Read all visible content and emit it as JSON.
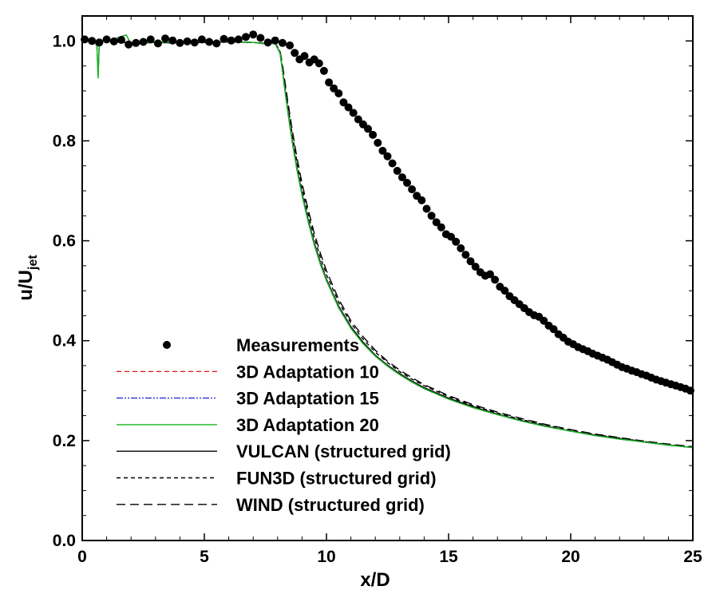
{
  "chart_data": {
    "type": "line",
    "xlabel": "x/D",
    "ylabel_main": "u/U",
    "ylabel_sub": "jet",
    "xlim": [
      0,
      25
    ],
    "ylim": [
      0,
      1.05
    ],
    "x_ticks": [
      0,
      5,
      10,
      15,
      20,
      25
    ],
    "x_tick_labels": [
      "0",
      "5",
      "10",
      "15",
      "20",
      "25"
    ],
    "y_ticks": [
      0,
      0.2,
      0.4,
      0.6,
      0.8,
      1.0
    ],
    "y_tick_labels": [
      "0.0",
      "0.2",
      "0.4",
      "0.6",
      "0.8",
      "1.0"
    ],
    "grid": false,
    "legend_position": "bottom-left",
    "measurements": {
      "name": "Measurements",
      "color": "#000000",
      "x": [
        0.1,
        0.4,
        0.7,
        1.0,
        1.3,
        1.6,
        1.9,
        2.2,
        2.5,
        2.8,
        3.1,
        3.4,
        3.7,
        4.0,
        4.3,
        4.6,
        4.9,
        5.2,
        5.5,
        5.8,
        6.1,
        6.4,
        6.7,
        7.0,
        7.3,
        7.6,
        7.9,
        8.2,
        8.5,
        8.7,
        8.9,
        9.1,
        9.3,
        9.5,
        9.7,
        9.9,
        10.1,
        10.3,
        10.5,
        10.7,
        10.9,
        11.1,
        11.3,
        11.5,
        11.7,
        11.9,
        12.1,
        12.3,
        12.5,
        12.7,
        12.9,
        13.1,
        13.3,
        13.5,
        13.7,
        13.9,
        14.1,
        14.3,
        14.5,
        14.7,
        14.9,
        15.1,
        15.3,
        15.5,
        15.7,
        15.9,
        16.1,
        16.3,
        16.5,
        16.7,
        16.9,
        17.1,
        17.3,
        17.5,
        17.7,
        17.9,
        18.1,
        18.3,
        18.5,
        18.7,
        18.9,
        19.1,
        19.3,
        19.5,
        19.7,
        19.9,
        20.1,
        20.3,
        20.5,
        20.7,
        20.9,
        21.1,
        21.3,
        21.5,
        21.7,
        21.9,
        22.1,
        22.3,
        22.5,
        22.7,
        22.9,
        23.1,
        23.3,
        23.5,
        23.7,
        23.9,
        24.1,
        24.3,
        24.5,
        24.7,
        24.9
      ],
      "y": [
        1.003,
        1.0,
        0.997,
        1.003,
        0.999,
        1.002,
        0.993,
        0.996,
        0.998,
        1.003,
        0.995,
        1.005,
        1.001,
        0.996,
        0.999,
        0.997,
        1.003,
        0.998,
        0.995,
        1.004,
        1.001,
        1.003,
        1.008,
        1.013,
        1.006,
        0.997,
        1.001,
        0.996,
        0.991,
        0.976,
        0.963,
        0.97,
        0.957,
        0.963,
        0.955,
        0.94,
        0.917,
        0.905,
        0.895,
        0.877,
        0.867,
        0.856,
        0.843,
        0.833,
        0.824,
        0.812,
        0.796,
        0.78,
        0.769,
        0.755,
        0.74,
        0.727,
        0.716,
        0.703,
        0.69,
        0.681,
        0.664,
        0.65,
        0.637,
        0.627,
        0.613,
        0.608,
        0.598,
        0.585,
        0.572,
        0.559,
        0.548,
        0.537,
        0.53,
        0.533,
        0.522,
        0.508,
        0.5,
        0.489,
        0.481,
        0.473,
        0.465,
        0.457,
        0.451,
        0.448,
        0.44,
        0.43,
        0.423,
        0.413,
        0.406,
        0.398,
        0.393,
        0.387,
        0.383,
        0.379,
        0.374,
        0.37,
        0.366,
        0.362,
        0.357,
        0.352,
        0.347,
        0.344,
        0.34,
        0.337,
        0.333,
        0.33,
        0.326,
        0.322,
        0.319,
        0.316,
        0.313,
        0.31,
        0.307,
        0.304,
        0.3
      ]
    },
    "series": [
      {
        "name": "3D Adaptation 10",
        "color": "#e32020",
        "x": [
          0,
          0.5,
          0.6,
          0.65,
          0.7,
          0.8,
          1.0,
          1.8,
          1.9,
          2.0,
          2.5,
          3.0,
          4.0,
          5.0,
          6.0,
          7.0,
          7.5,
          7.9,
          8.1,
          8.2,
          8.3,
          8.4,
          8.5,
          8.6,
          8.8,
          9.0,
          9.25,
          9.5,
          9.75,
          10,
          10.5,
          11,
          11.5,
          12,
          12.5,
          13,
          13.5,
          14,
          15,
          16,
          17,
          18,
          19,
          20,
          21,
          22,
          23,
          24,
          25
        ],
        "y": [
          1.0,
          0.998,
          0.99,
          0.93,
          0.995,
          1.0,
          0.999,
          1.012,
          1.003,
          0.993,
          0.995,
          0.998,
          0.997,
          0.998,
          0.999,
          0.997,
          0.994,
          0.995,
          0.975,
          0.94,
          0.9,
          0.865,
          0.83,
          0.797,
          0.74,
          0.691,
          0.638,
          0.592,
          0.553,
          0.52,
          0.466,
          0.425,
          0.394,
          0.369,
          0.349,
          0.332,
          0.317,
          0.304,
          0.283,
          0.266,
          0.252,
          0.239,
          0.228,
          0.219,
          0.21,
          0.203,
          0.197,
          0.191,
          0.186
        ]
      },
      {
        "name": "3D Adaptation 15",
        "color": "#2b2bd6",
        "x": [
          0,
          0.5,
          0.6,
          0.65,
          0.7,
          0.8,
          1.0,
          1.8,
          1.9,
          2.0,
          2.5,
          3.0,
          4.0,
          5.0,
          6.0,
          7.0,
          7.5,
          7.9,
          8.1,
          8.2,
          8.3,
          8.4,
          8.5,
          8.6,
          8.8,
          9.0,
          9.25,
          9.5,
          9.75,
          10,
          10.5,
          11,
          11.5,
          12,
          12.5,
          13,
          13.5,
          14,
          15,
          16,
          17,
          18,
          19,
          20,
          21,
          22,
          23,
          24,
          25
        ],
        "y": [
          1.0,
          0.998,
          0.99,
          0.93,
          0.995,
          1.0,
          0.999,
          1.012,
          1.003,
          0.993,
          0.995,
          0.998,
          0.997,
          0.998,
          0.999,
          0.997,
          0.994,
          0.995,
          0.975,
          0.94,
          0.9,
          0.865,
          0.83,
          0.797,
          0.74,
          0.691,
          0.638,
          0.592,
          0.553,
          0.52,
          0.466,
          0.425,
          0.394,
          0.369,
          0.349,
          0.332,
          0.317,
          0.304,
          0.283,
          0.266,
          0.252,
          0.239,
          0.228,
          0.219,
          0.21,
          0.203,
          0.197,
          0.191,
          0.186
        ]
      },
      {
        "name": "3D Adaptation 20",
        "color": "#12b81a",
        "x": [
          0,
          0.5,
          0.6,
          0.65,
          0.7,
          0.8,
          1.0,
          1.8,
          1.9,
          2.0,
          2.5,
          3.0,
          4.0,
          5.0,
          6.0,
          7.0,
          7.5,
          7.9,
          8.1,
          8.2,
          8.3,
          8.4,
          8.5,
          8.6,
          8.8,
          9.0,
          9.25,
          9.5,
          9.75,
          10,
          10.5,
          11,
          11.5,
          12,
          12.5,
          13,
          13.5,
          14,
          15,
          16,
          17,
          18,
          19,
          20,
          21,
          22,
          23,
          24,
          25
        ],
        "y": [
          1.0,
          0.998,
          0.99,
          0.925,
          0.995,
          1.0,
          0.999,
          1.012,
          1.003,
          0.993,
          0.995,
          0.998,
          0.997,
          0.998,
          0.999,
          0.997,
          0.994,
          0.995,
          0.975,
          0.94,
          0.9,
          0.865,
          0.83,
          0.797,
          0.74,
          0.691,
          0.638,
          0.592,
          0.553,
          0.52,
          0.466,
          0.425,
          0.394,
          0.369,
          0.349,
          0.332,
          0.317,
          0.304,
          0.283,
          0.266,
          0.252,
          0.239,
          0.228,
          0.219,
          0.21,
          0.203,
          0.197,
          0.191,
          0.186
        ]
      },
      {
        "name": "VULCAN (structured grid)",
        "color": "#000000",
        "x": [
          0,
          1.0,
          2.0,
          3.0,
          4.0,
          5.0,
          6.0,
          7.0,
          7.5,
          7.9,
          8.1,
          8.2,
          8.3,
          8.4,
          8.5,
          8.6,
          8.8,
          9.0,
          9.25,
          9.5,
          9.75,
          10,
          10.5,
          11,
          11.5,
          12,
          12.5,
          13,
          13.5,
          14,
          15,
          16,
          17,
          18,
          19,
          20,
          21,
          22,
          23,
          24,
          25
        ],
        "y": [
          1.0,
          1.0,
          0.996,
          0.997,
          0.996,
          0.997,
          0.998,
          0.997,
          0.995,
          0.996,
          0.976,
          0.942,
          0.903,
          0.868,
          0.834,
          0.801,
          0.744,
          0.695,
          0.642,
          0.596,
          0.557,
          0.523,
          0.469,
          0.428,
          0.397,
          0.371,
          0.351,
          0.334,
          0.319,
          0.306,
          0.285,
          0.268,
          0.253,
          0.24,
          0.229,
          0.219,
          0.211,
          0.204,
          0.197,
          0.191,
          0.186
        ]
      },
      {
        "name": "FUN3D (structured grid)",
        "color": "#000000",
        "x": [
          0,
          1.0,
          2.0,
          3.0,
          4.0,
          5.0,
          6.0,
          7.0,
          7.5,
          7.9,
          8.1,
          8.2,
          8.3,
          8.4,
          8.5,
          8.6,
          8.8,
          9.0,
          9.25,
          9.5,
          9.75,
          10,
          10.5,
          11,
          11.5,
          12,
          12.5,
          13,
          13.5,
          14,
          15,
          16,
          17,
          18,
          19,
          20,
          21,
          22,
          23,
          24,
          25
        ],
        "y": [
          1.0,
          1.0,
          0.996,
          0.997,
          0.996,
          0.997,
          0.998,
          0.997,
          0.995,
          0.996,
          0.978,
          0.948,
          0.912,
          0.878,
          0.845,
          0.812,
          0.755,
          0.706,
          0.653,
          0.607,
          0.567,
          0.532,
          0.477,
          0.435,
          0.403,
          0.377,
          0.356,
          0.338,
          0.323,
          0.31,
          0.288,
          0.27,
          0.255,
          0.242,
          0.231,
          0.221,
          0.212,
          0.205,
          0.198,
          0.192,
          0.187
        ]
      },
      {
        "name": "WIND (structured grid)",
        "color": "#000000",
        "x": [
          0,
          1.0,
          2.0,
          3.0,
          4.0,
          5.0,
          6.0,
          7.0,
          7.5,
          7.9,
          8.1,
          8.2,
          8.3,
          8.4,
          8.5,
          8.6,
          8.8,
          9.0,
          9.25,
          9.5,
          9.75,
          10,
          10.5,
          11,
          11.5,
          12,
          12.5,
          13,
          13.5,
          14,
          15,
          16,
          17,
          18,
          19,
          20,
          21,
          22,
          23,
          24,
          25
        ],
        "y": [
          1.0,
          1.0,
          0.996,
          0.997,
          0.996,
          0.997,
          0.998,
          0.997,
          0.995,
          0.996,
          0.98,
          0.952,
          0.918,
          0.885,
          0.853,
          0.821,
          0.764,
          0.715,
          0.662,
          0.615,
          0.575,
          0.54,
          0.483,
          0.44,
          0.408,
          0.381,
          0.359,
          0.341,
          0.326,
          0.312,
          0.29,
          0.272,
          0.257,
          0.244,
          0.232,
          0.222,
          0.213,
          0.206,
          0.199,
          0.193,
          0.188
        ]
      }
    ],
    "legend": [
      {
        "label": "Measurements",
        "kind": "marker",
        "color": "#000000"
      },
      {
        "label": "3D Adaptation 10",
        "kind": "line",
        "color": "#e32020",
        "dash": "6,4"
      },
      {
        "label": "3D Adaptation 15",
        "kind": "line",
        "color": "#2b2bd6",
        "dash": "8,2,2,2,2,2"
      },
      {
        "label": "3D Adaptation 20",
        "kind": "line",
        "color": "#12b81a",
        "dash": ""
      },
      {
        "label": "VULCAN (structured grid)",
        "kind": "line",
        "color": "#000000",
        "dash": ""
      },
      {
        "label": "FUN3D (structured grid)",
        "kind": "line",
        "color": "#000000",
        "dash": "5,4"
      },
      {
        "label": "WIND (structured grid)",
        "kind": "line",
        "color": "#000000",
        "dash": "11,6"
      }
    ]
  }
}
